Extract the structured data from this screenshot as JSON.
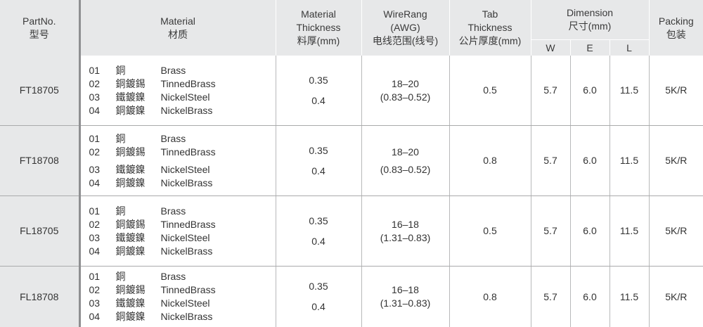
{
  "header": {
    "part": [
      "PartNo.",
      "型号"
    ],
    "material": [
      "Material",
      "材质"
    ],
    "thickness": [
      "Material",
      "Thickness",
      "料厚(mm)"
    ],
    "wire": [
      "WireRang",
      "(AWG)",
      "电线范围(线号)"
    ],
    "tab": [
      "Tab",
      "Thickness",
      "公片厚度(mm)"
    ],
    "dimension": [
      "Dimension",
      "尺寸(mm)"
    ],
    "dim_cols": [
      "W",
      "E",
      "L"
    ],
    "packing": [
      "Packing",
      "包装"
    ]
  },
  "rows": [
    {
      "part": "FT18705",
      "materials": [
        {
          "code": "01",
          "cn": "銅",
          "en": "Brass"
        },
        {
          "code": "02",
          "cn": "銅鍍錫",
          "en": "TinnedBrass"
        },
        {
          "code": "03",
          "cn": "鐵鍍鎳",
          "en": "NickelSteel"
        },
        {
          "code": "04",
          "cn": "銅鍍鎳",
          "en": "NickelBrass"
        }
      ],
      "thickness": [
        "0.35",
        "0.4"
      ],
      "wire": [
        "18–20",
        "(0.83–0.52)"
      ],
      "tab": "0.5",
      "w": "5.7",
      "e": "6.0",
      "l": "11.5",
      "packing": "5K/R"
    },
    {
      "part": "FT18708",
      "materials": [
        {
          "code": "01",
          "cn": "銅",
          "en": "Brass"
        },
        {
          "code": "02",
          "cn": "銅鍍錫",
          "en": "TinnedBrass"
        },
        {
          "code": "03",
          "cn": "鐵鍍鎳",
          "en": "NickelSteel"
        },
        {
          "code": "04",
          "cn": "銅鍍鎳",
          "en": "NickelBrass"
        }
      ],
      "thickness": [
        "0.35",
        "0.4"
      ],
      "wire": [
        "18–20",
        "(0.83–0.52)"
      ],
      "tab": "0.8",
      "w": "5.7",
      "e": "6.0",
      "l": "11.5",
      "packing": "5K/R"
    },
    {
      "part": "FL18705",
      "materials": [
        {
          "code": "01",
          "cn": "銅",
          "en": "Brass"
        },
        {
          "code": "02",
          "cn": "銅鍍錫",
          "en": "TinnedBrass"
        },
        {
          "code": "03",
          "cn": "鐵鍍鎳",
          "en": "NickelSteel"
        },
        {
          "code": "04",
          "cn": "銅鍍鎳",
          "en": "NickelBrass"
        }
      ],
      "thickness": [
        "0.35",
        "0.4"
      ],
      "wire": [
        "16–18",
        "(1.31–0.83)"
      ],
      "tab": "0.5",
      "w": "5.7",
      "e": "6.0",
      "l": "11.5",
      "packing": "5K/R"
    },
    {
      "part": "FL18708",
      "materials": [
        {
          "code": "01",
          "cn": "銅",
          "en": "Brass"
        },
        {
          "code": "02",
          "cn": "銅鍍錫",
          "en": "TinnedBrass"
        },
        {
          "code": "03",
          "cn": "鐵鍍鎳",
          "en": "NickelSteel"
        },
        {
          "code": "04",
          "cn": "銅鍍鎳",
          "en": "NickelBrass"
        }
      ],
      "thickness": [
        "0.35",
        "0.4"
      ],
      "wire": [
        "16–18",
        "(1.31–0.83)"
      ],
      "tab": "0.8",
      "w": "5.7",
      "e": "6.0",
      "l": "11.5",
      "packing": "5K/R"
    }
  ]
}
